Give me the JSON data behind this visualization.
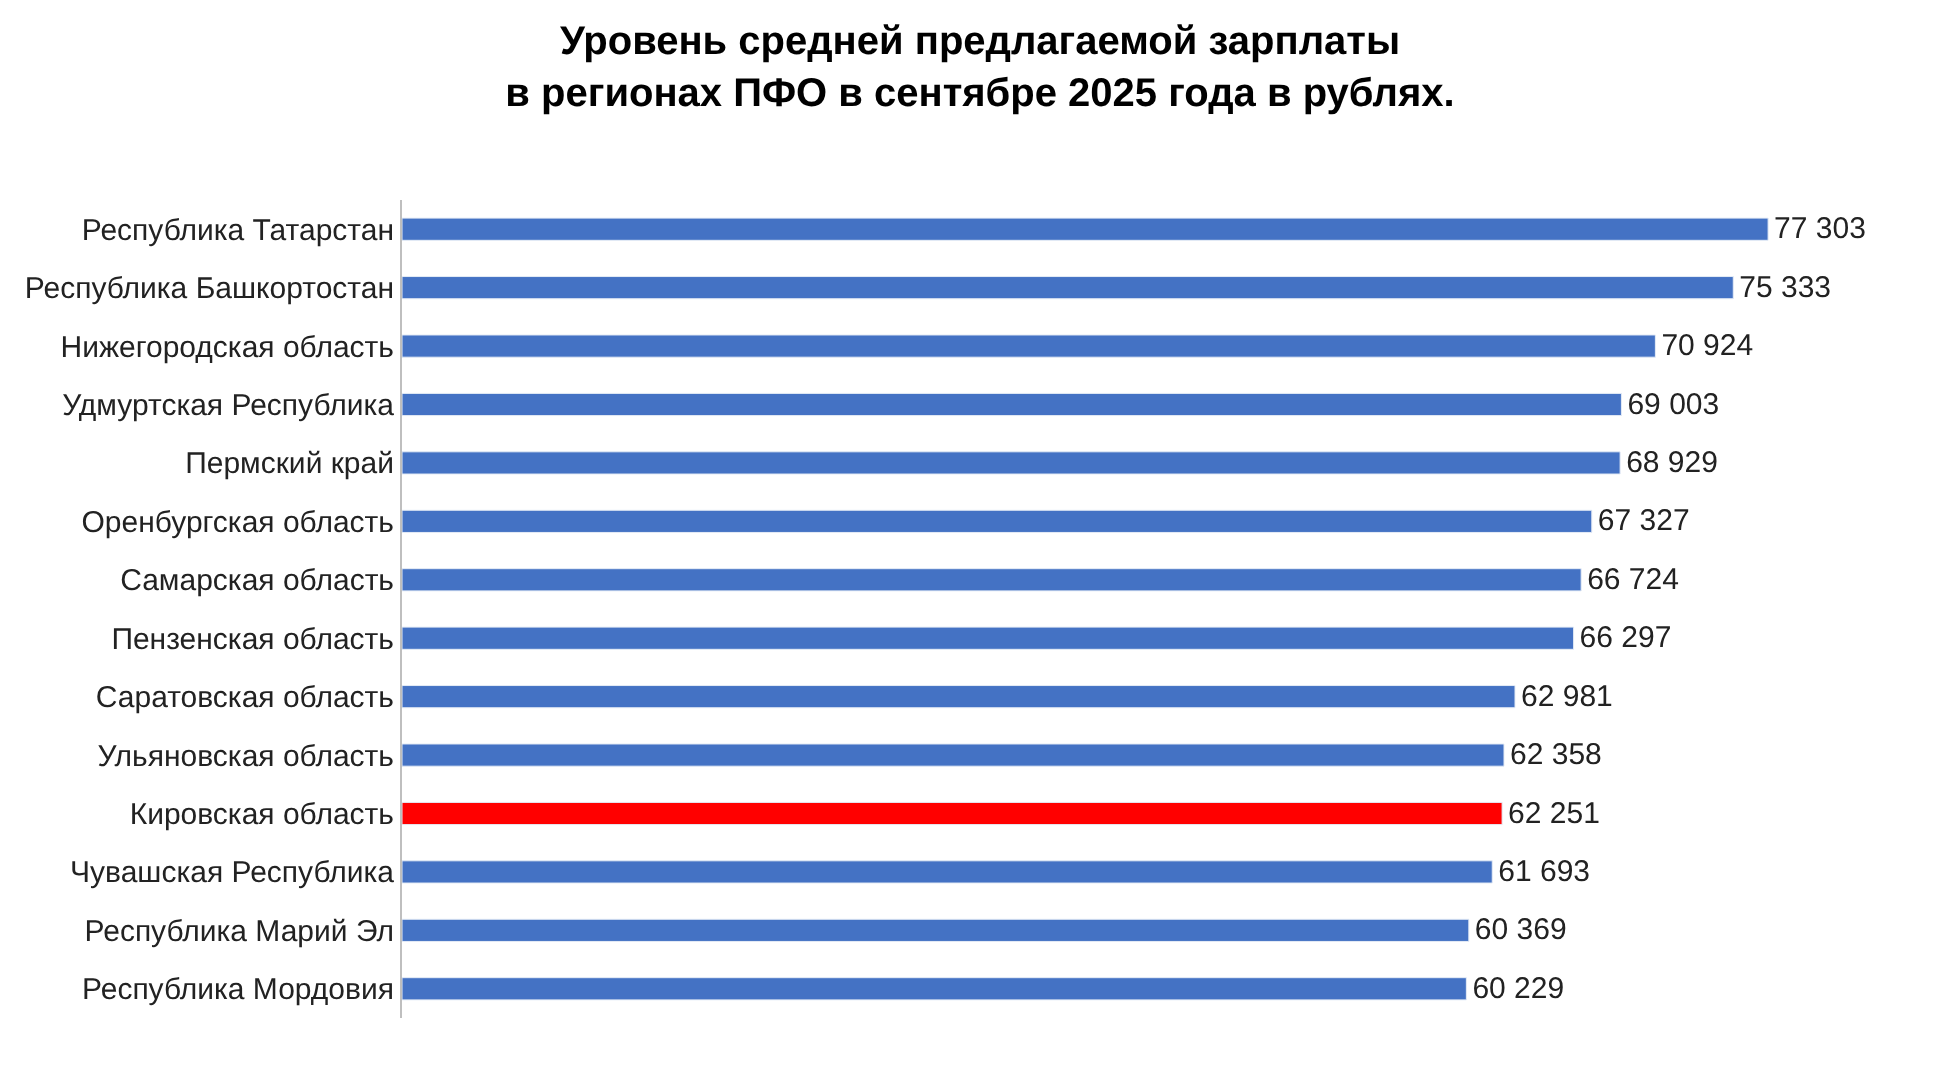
{
  "chart_data": {
    "type": "bar",
    "orientation": "horizontal",
    "title": "Уровень средней предлагаемой зарплаты\nв регионах ПФО в сентябре 2025 года в рублях.",
    "categories": [
      "Республика Татарстан",
      "Республика Башкортостан",
      "Нижегородская область",
      "Удмуртская Республика",
      "Пермский край",
      "Оренбургская область",
      "Самарская область",
      "Пензенская область",
      "Саратовская область",
      "Ульяновская область",
      "Кировская область",
      "Чувашская Республика",
      "Республика Марий Эл",
      "Республика Мордовия"
    ],
    "values": [
      77303,
      75333,
      70924,
      69003,
      68929,
      67327,
      66724,
      66297,
      62981,
      62358,
      62251,
      61693,
      60369,
      60229
    ],
    "colors": [
      "#4472c4",
      "#4472c4",
      "#4472c4",
      "#4472c4",
      "#4472c4",
      "#4472c4",
      "#4472c4",
      "#4472c4",
      "#4472c4",
      "#4472c4",
      "#ff0000",
      "#4472c4",
      "#4472c4",
      "#4472c4"
    ],
    "data_labels": true,
    "tick_labels": "y",
    "legend": false
  }
}
